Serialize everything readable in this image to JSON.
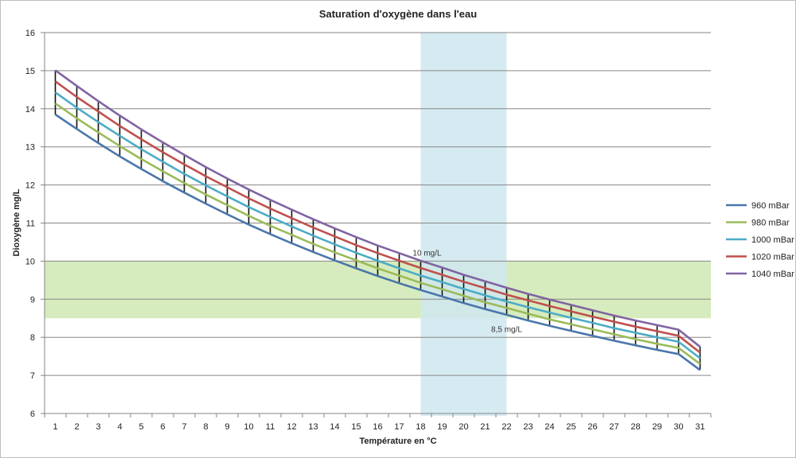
{
  "chart_data": {
    "type": "line",
    "title": "Saturation d'oxygène dans l'eau",
    "xlabel": "Température en °C",
    "ylabel": "Dioxygène mg/L",
    "x": [
      1,
      2,
      3,
      4,
      5,
      6,
      7,
      8,
      9,
      10,
      11,
      12,
      13,
      14,
      15,
      16,
      17,
      18,
      19,
      20,
      21,
      22,
      23,
      24,
      25,
      26,
      27,
      28,
      29,
      30,
      31
    ],
    "ylim": [
      6,
      16
    ],
    "yticks": [
      6,
      7,
      8,
      9,
      10,
      11,
      12,
      13,
      14,
      15,
      16
    ],
    "grid": true,
    "legend_position": "right",
    "series": [
      {
        "name": "960 mBar",
        "color": "#4a77ab",
        "values": [
          13.85,
          13.47,
          13.1,
          12.75,
          12.42,
          12.1,
          11.8,
          11.51,
          11.23,
          10.96,
          10.71,
          10.47,
          10.24,
          10.02,
          9.81,
          9.61,
          9.42,
          9.24,
          9.07,
          8.9,
          8.74,
          8.59,
          8.44,
          8.3,
          8.17,
          8.04,
          7.91,
          7.79,
          7.67,
          7.56,
          7.14
        ]
      },
      {
        "name": "980 mBar",
        "color": "#9bbb59",
        "values": [
          14.14,
          13.75,
          13.38,
          13.02,
          12.68,
          12.36,
          12.05,
          11.75,
          11.47,
          11.19,
          10.93,
          10.69,
          10.45,
          10.23,
          10.02,
          9.81,
          9.62,
          9.43,
          9.26,
          9.09,
          8.92,
          8.77,
          8.62,
          8.47,
          8.34,
          8.21,
          8.08,
          7.95,
          7.83,
          7.72,
          7.3
        ]
      },
      {
        "name": "1000 mBar",
        "color": "#4bacc6",
        "values": [
          14.43,
          14.03,
          13.65,
          13.29,
          12.94,
          12.61,
          12.29,
          11.99,
          11.7,
          11.42,
          11.16,
          10.91,
          10.67,
          10.44,
          10.22,
          10.01,
          9.81,
          9.62,
          9.45,
          9.27,
          9.1,
          8.94,
          8.79,
          8.65,
          8.51,
          8.38,
          8.24,
          8.12,
          8.0,
          7.88,
          7.45
        ]
      },
      {
        "name": "1020 mBar",
        "color": "#c0504d",
        "values": [
          14.72,
          14.31,
          13.93,
          13.55,
          13.2,
          12.86,
          12.54,
          12.23,
          11.94,
          11.65,
          11.38,
          11.13,
          10.88,
          10.65,
          10.42,
          10.21,
          10.01,
          9.82,
          9.64,
          9.46,
          9.29,
          9.12,
          8.97,
          8.82,
          8.68,
          8.54,
          8.41,
          8.28,
          8.16,
          8.04,
          7.6
        ]
      },
      {
        "name": "1040 mBar",
        "color": "#8064a2",
        "values": [
          15.01,
          14.6,
          14.2,
          13.82,
          13.46,
          13.12,
          12.79,
          12.47,
          12.17,
          11.88,
          11.61,
          11.35,
          11.1,
          10.86,
          10.63,
          10.41,
          10.21,
          10.01,
          9.83,
          9.64,
          9.47,
          9.3,
          9.14,
          8.99,
          8.85,
          8.71,
          8.57,
          8.44,
          8.32,
          8.2,
          7.75
        ]
      }
    ],
    "bands": [
      {
        "axis": "y",
        "from": 8.5,
        "to": 10,
        "color": "#d7ecbe"
      },
      {
        "axis": "x",
        "from": 18,
        "to": 22,
        "color": "#cfe8ef"
      }
    ],
    "annotations": [
      {
        "text": "10 mg/L",
        "x": 18,
        "y": 10
      },
      {
        "text": "8,5 mg/L",
        "x": 22,
        "y": 8.5
      }
    ]
  }
}
